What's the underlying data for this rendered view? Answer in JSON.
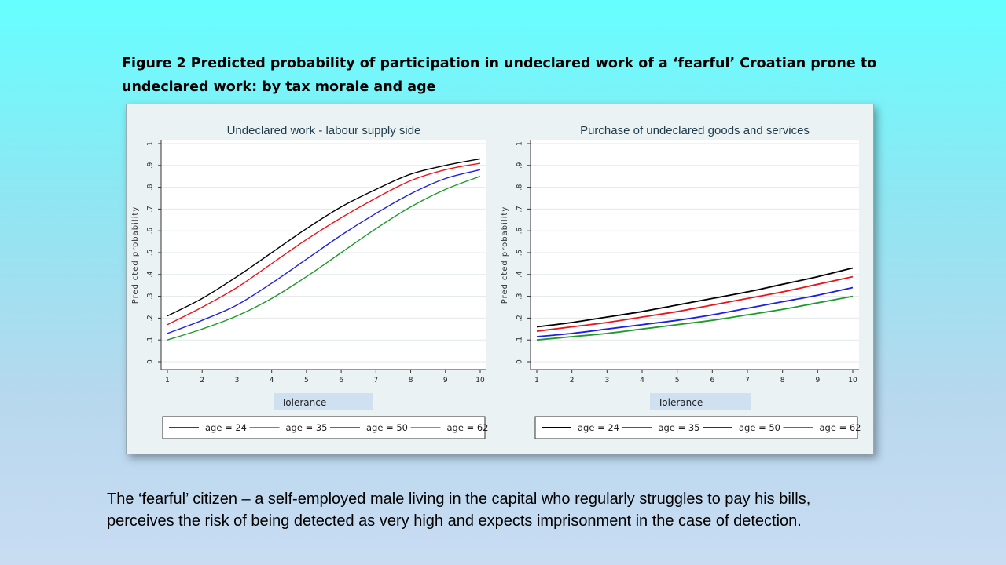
{
  "figure_title_line1": "Figure 2  Predicted probability of participation in undeclared work of a ‘fearful’ Croatian prone to",
  "figure_title_line2": "undeclared work: by tax morale and age",
  "caption_line1": "The ‘fearful’ citizen – a self-employed male living in the capital who regularly struggles to pay his bills,",
  "caption_line2": "perceives the risk of being detected as very high and expects imprisonment in the case of detection.",
  "chart_data": [
    {
      "type": "line",
      "title": "Undeclared work - labour supply side",
      "xlabel": "Tolerance",
      "ylabel": "Predicted probability",
      "x": [
        1,
        2,
        3,
        4,
        5,
        6,
        7,
        8,
        9,
        10
      ],
      "xticks": [
        "1",
        "2",
        "3",
        "4",
        "5",
        "6",
        "7",
        "8",
        "9",
        "10"
      ],
      "yticks": [
        "0",
        ".1",
        ".2",
        ".3",
        ".4",
        ".5",
        ".6",
        ".7",
        ".8",
        ".9",
        "1"
      ],
      "xlim": [
        1,
        10
      ],
      "ylim": [
        0,
        1
      ],
      "grid": true,
      "legend_position": "bottom",
      "series": [
        {
          "name": "age = 24",
          "color": "#000000",
          "values": [
            0.21,
            0.29,
            0.39,
            0.5,
            0.61,
            0.71,
            0.79,
            0.86,
            0.9,
            0.93
          ]
        },
        {
          "name": "age = 35",
          "color": "#e8161b",
          "values": [
            0.17,
            0.25,
            0.34,
            0.45,
            0.56,
            0.66,
            0.75,
            0.83,
            0.88,
            0.91
          ]
        },
        {
          "name": "age = 50",
          "color": "#1f1fe0",
          "values": [
            0.13,
            0.19,
            0.26,
            0.36,
            0.47,
            0.58,
            0.68,
            0.77,
            0.84,
            0.88
          ]
        },
        {
          "name": "age = 62",
          "color": "#1e9a2a",
          "values": [
            0.1,
            0.15,
            0.21,
            0.29,
            0.39,
            0.5,
            0.61,
            0.71,
            0.79,
            0.85
          ]
        }
      ]
    },
    {
      "type": "line",
      "title": "Purchase of undeclared goods and services",
      "xlabel": "Tolerance",
      "ylabel": "Predicted probability",
      "x": [
        1,
        2,
        3,
        4,
        5,
        6,
        7,
        8,
        9,
        10
      ],
      "xticks": [
        "1",
        "2",
        "3",
        "4",
        "5",
        "6",
        "7",
        "8",
        "9",
        "10"
      ],
      "yticks": [
        "0",
        ".1",
        ".2",
        ".3",
        ".4",
        ".5",
        ".6",
        ".7",
        ".8",
        ".9",
        "1"
      ],
      "xlim": [
        1,
        10
      ],
      "ylim": [
        0,
        1
      ],
      "grid": true,
      "legend_position": "bottom",
      "series": [
        {
          "name": "age = 24",
          "color": "#000000",
          "values": [
            0.16,
            0.18,
            0.205,
            0.23,
            0.26,
            0.29,
            0.32,
            0.355,
            0.39,
            0.43
          ]
        },
        {
          "name": "age = 35",
          "color": "#e8161b",
          "values": [
            0.14,
            0.16,
            0.18,
            0.205,
            0.23,
            0.26,
            0.29,
            0.32,
            0.355,
            0.39
          ]
        },
        {
          "name": "age = 50",
          "color": "#1f1fe0",
          "values": [
            0.115,
            0.13,
            0.15,
            0.17,
            0.19,
            0.215,
            0.245,
            0.275,
            0.305,
            0.34
          ]
        },
        {
          "name": "age = 62",
          "color": "#1e9a2a",
          "values": [
            0.1,
            0.115,
            0.13,
            0.15,
            0.17,
            0.19,
            0.215,
            0.24,
            0.27,
            0.3
          ]
        }
      ]
    }
  ]
}
